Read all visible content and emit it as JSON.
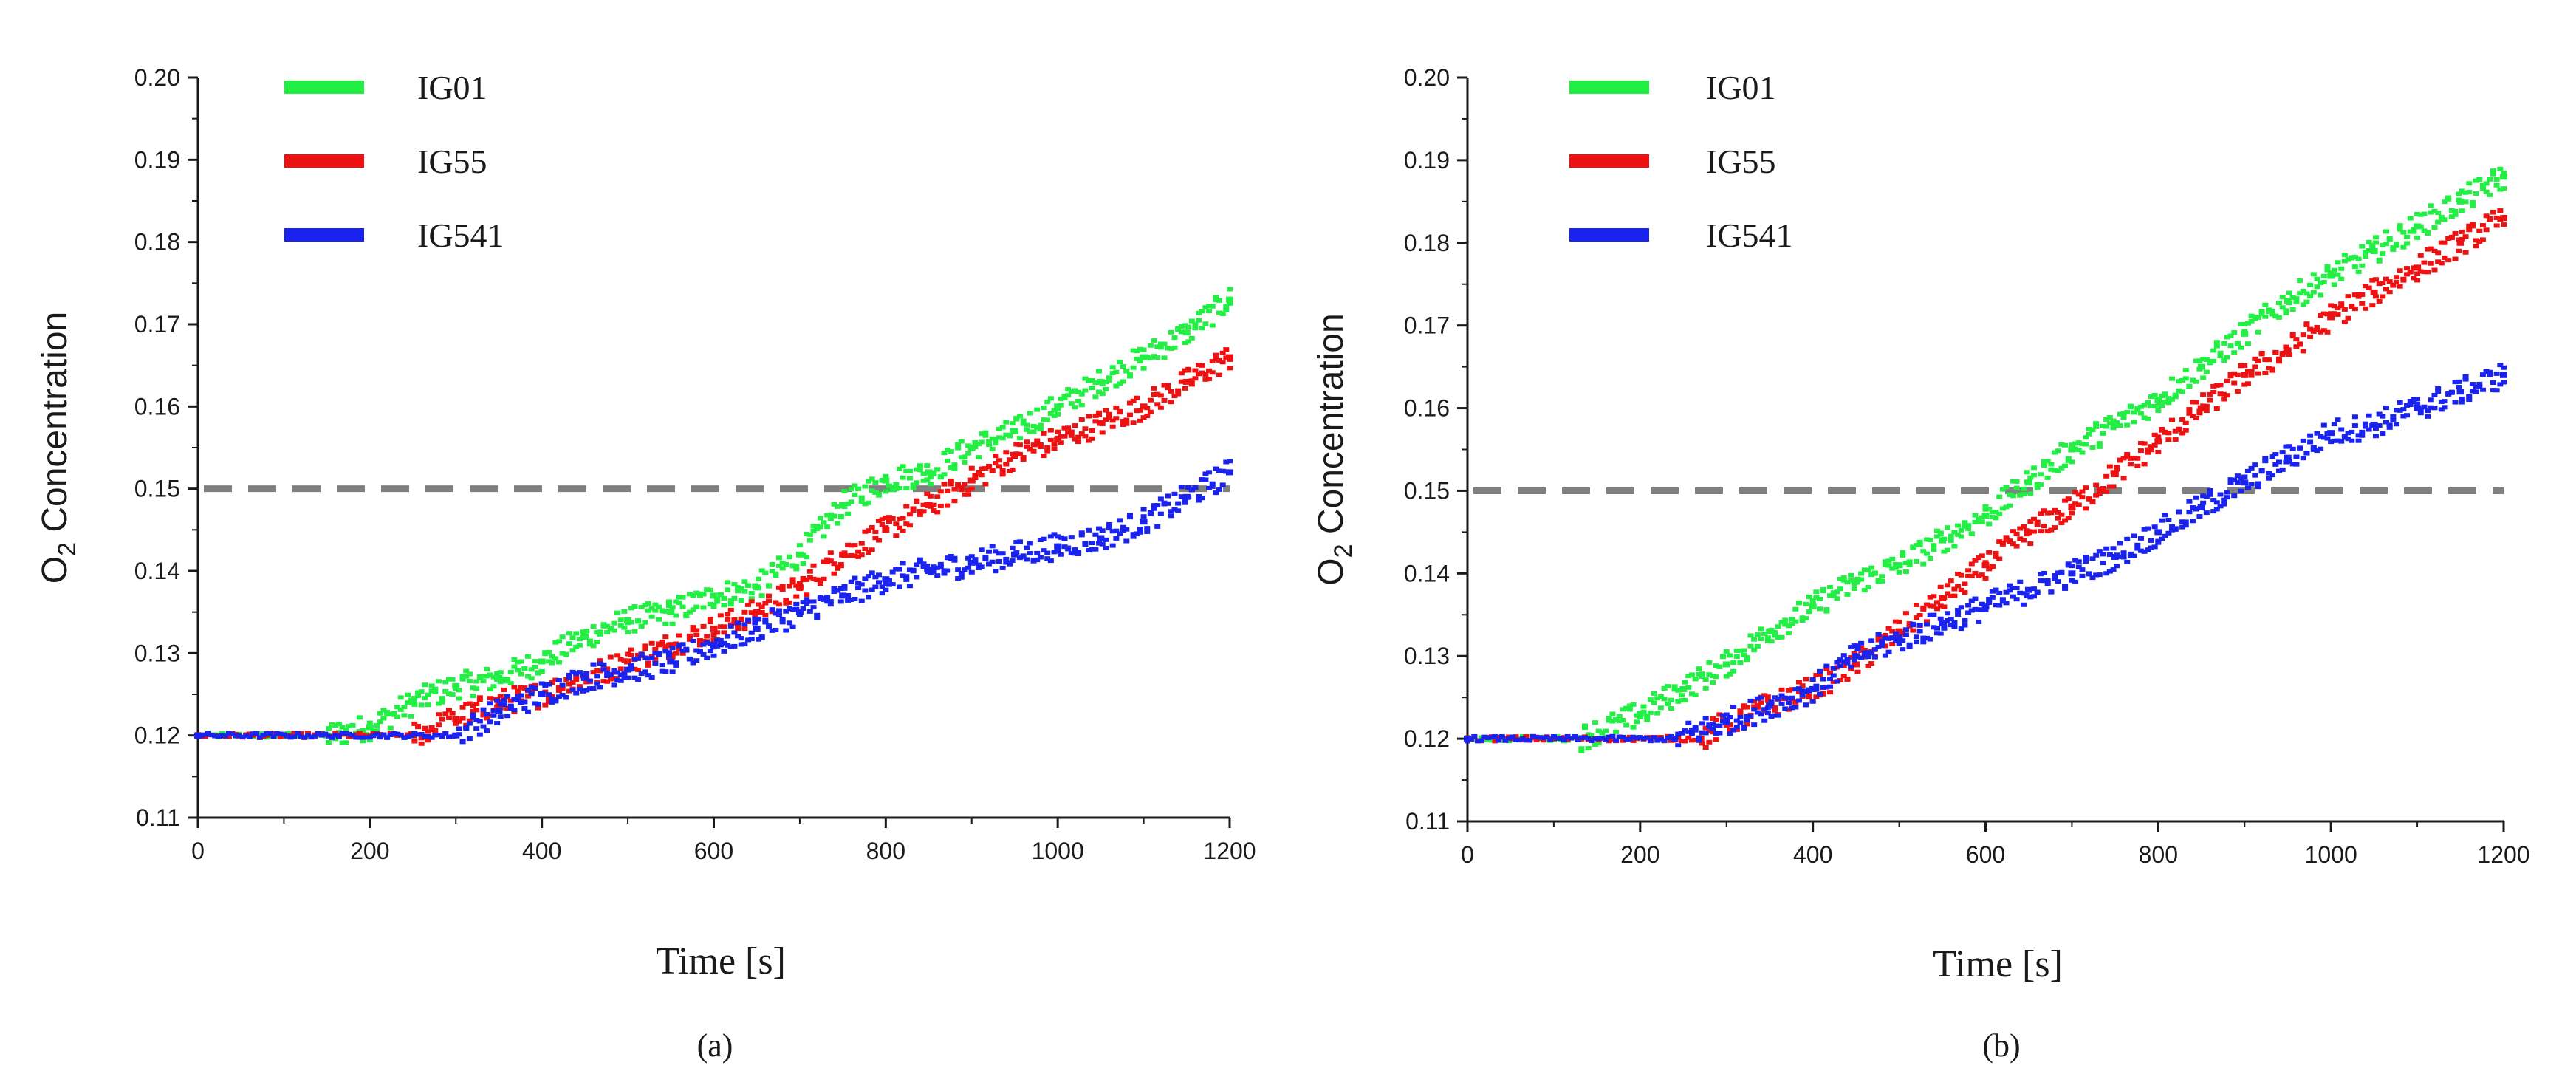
{
  "colors": {
    "IG01": "#22ee44",
    "IG55": "#ee1111",
    "IG541": "#1a22ee",
    "threshold": "#808080",
    "axis": "#1a1a1a"
  },
  "chart_data": [
    {
      "type": "scatter",
      "caption": "(a)",
      "xlabel": "Time [s]",
      "ylabel_main": "O",
      "ylabel_sub": "2",
      "ylabel_rest": " Concentration",
      "xlim": [
        0,
        1200
      ],
      "ylim": [
        0.11,
        0.2
      ],
      "xticks": [
        0,
        200,
        400,
        600,
        800,
        1000,
        1200
      ],
      "xtick_labels": [
        "0",
        "200",
        "400",
        "600",
        "800",
        "1000",
        "1200"
      ],
      "yticks": [
        0.11,
        0.12,
        0.13,
        0.14,
        0.15,
        0.16,
        0.17,
        0.18,
        0.19,
        0.2
      ],
      "ytick_labels": [
        "0.11",
        "0.12",
        "0.13",
        "0.14",
        "0.15",
        "0.16",
        "0.17",
        "0.18",
        "0.19",
        "0.20"
      ],
      "threshold": 0.15,
      "legend_position": "top-left",
      "series": [
        {
          "name": "IG01",
          "points": [
            [
              0,
              0.12
            ],
            [
              150,
              0.12
            ],
            [
              200,
              0.121
            ],
            [
              250,
              0.124
            ],
            [
              300,
              0.126
            ],
            [
              350,
              0.127
            ],
            [
              400,
              0.129
            ],
            [
              450,
              0.132
            ],
            [
              500,
              0.134
            ],
            [
              550,
              0.135
            ],
            [
              600,
              0.137
            ],
            [
              650,
              0.138
            ],
            [
              700,
              0.142
            ],
            [
              750,
              0.148
            ],
            [
              800,
              0.151
            ],
            [
              850,
              0.152
            ],
            [
              900,
              0.155
            ],
            [
              950,
              0.157
            ],
            [
              1000,
              0.16
            ],
            [
              1050,
              0.163
            ],
            [
              1100,
              0.166
            ],
            [
              1150,
              0.169
            ],
            [
              1200,
              0.173
            ]
          ]
        },
        {
          "name": "IG55",
          "points": [
            [
              0,
              0.12
            ],
            [
              250,
              0.12
            ],
            [
              300,
              0.122
            ],
            [
              350,
              0.124
            ],
            [
              400,
              0.125
            ],
            [
              450,
              0.127
            ],
            [
              500,
              0.129
            ],
            [
              550,
              0.131
            ],
            [
              600,
              0.133
            ],
            [
              650,
              0.135
            ],
            [
              700,
              0.138
            ],
            [
              750,
              0.142
            ],
            [
              800,
              0.145
            ],
            [
              850,
              0.148
            ],
            [
              900,
              0.151
            ],
            [
              950,
              0.154
            ],
            [
              1000,
              0.156
            ],
            [
              1050,
              0.158
            ],
            [
              1100,
              0.16
            ],
            [
              1150,
              0.163
            ],
            [
              1200,
              0.166
            ]
          ]
        },
        {
          "name": "IG541",
          "points": [
            [
              0,
              0.12
            ],
            [
              300,
              0.12
            ],
            [
              350,
              0.123
            ],
            [
              400,
              0.125
            ],
            [
              450,
              0.127
            ],
            [
              500,
              0.128
            ],
            [
              550,
              0.129
            ],
            [
              600,
              0.131
            ],
            [
              650,
              0.133
            ],
            [
              700,
              0.135
            ],
            [
              750,
              0.137
            ],
            [
              800,
              0.139
            ],
            [
              850,
              0.14
            ],
            [
              900,
              0.141
            ],
            [
              950,
              0.142
            ],
            [
              1000,
              0.143
            ],
            [
              1050,
              0.144
            ],
            [
              1100,
              0.146
            ],
            [
              1150,
              0.149
            ],
            [
              1200,
              0.152
            ]
          ]
        }
      ]
    },
    {
      "type": "scatter",
      "caption": "(b)",
      "xlabel": "Time [s]",
      "ylabel_main": "O",
      "ylabel_sub": "2",
      "ylabel_rest": " Concentration",
      "xlim": [
        0,
        1200
      ],
      "ylim": [
        0.11,
        0.2
      ],
      "xticks": [
        0,
        200,
        400,
        600,
        800,
        1000,
        1200
      ],
      "xtick_labels": [
        "0",
        "200",
        "400",
        "600",
        "800",
        "1000",
        "1200"
      ],
      "yticks": [
        0.11,
        0.12,
        0.13,
        0.14,
        0.15,
        0.16,
        0.17,
        0.18,
        0.19,
        0.2
      ],
      "ytick_labels": [
        "0.11",
        "0.12",
        "0.13",
        "0.14",
        "0.15",
        "0.16",
        "0.17",
        "0.18",
        "0.19",
        "0.20"
      ],
      "threshold": 0.15,
      "legend_position": "top-left",
      "series": [
        {
          "name": "IG01",
          "points": [
            [
              0,
              0.12
            ],
            [
              130,
              0.12
            ],
            [
              200,
              0.123
            ],
            [
              250,
              0.126
            ],
            [
              300,
              0.129
            ],
            [
              350,
              0.133
            ],
            [
              400,
              0.136
            ],
            [
              450,
              0.139
            ],
            [
              500,
              0.141
            ],
            [
              550,
              0.144
            ],
            [
              600,
              0.147
            ],
            [
              650,
              0.151
            ],
            [
              700,
              0.155
            ],
            [
              750,
              0.158
            ],
            [
              800,
              0.161
            ],
            [
              850,
              0.165
            ],
            [
              900,
              0.169
            ],
            [
              950,
              0.173
            ],
            [
              1000,
              0.176
            ],
            [
              1050,
              0.179
            ],
            [
              1100,
              0.182
            ],
            [
              1150,
              0.185
            ],
            [
              1200,
              0.188
            ]
          ]
        },
        {
          "name": "IG55",
          "points": [
            [
              0,
              0.12
            ],
            [
              270,
              0.12
            ],
            [
              300,
              0.122
            ],
            [
              350,
              0.124
            ],
            [
              400,
              0.126
            ],
            [
              450,
              0.129
            ],
            [
              500,
              0.133
            ],
            [
              550,
              0.137
            ],
            [
              600,
              0.141
            ],
            [
              650,
              0.145
            ],
            [
              700,
              0.148
            ],
            [
              750,
              0.152
            ],
            [
              800,
              0.156
            ],
            [
              850,
              0.16
            ],
            [
              900,
              0.164
            ],
            [
              950,
              0.167
            ],
            [
              1000,
              0.171
            ],
            [
              1050,
              0.174
            ],
            [
              1100,
              0.177
            ],
            [
              1150,
              0.18
            ],
            [
              1200,
              0.183
            ]
          ]
        },
        {
          "name": "IG541",
          "points": [
            [
              0,
              0.12
            ],
            [
              240,
              0.12
            ],
            [
              300,
              0.122
            ],
            [
              350,
              0.124
            ],
            [
              400,
              0.126
            ],
            [
              450,
              0.13
            ],
            [
              500,
              0.132
            ],
            [
              550,
              0.134
            ],
            [
              600,
              0.136
            ],
            [
              650,
              0.138
            ],
            [
              700,
              0.14
            ],
            [
              750,
              0.142
            ],
            [
              800,
              0.145
            ],
            [
              850,
              0.148
            ],
            [
              900,
              0.151
            ],
            [
              950,
              0.154
            ],
            [
              1000,
              0.157
            ],
            [
              1050,
              0.158
            ],
            [
              1100,
              0.16
            ],
            [
              1150,
              0.162
            ],
            [
              1200,
              0.164
            ]
          ]
        }
      ]
    }
  ]
}
